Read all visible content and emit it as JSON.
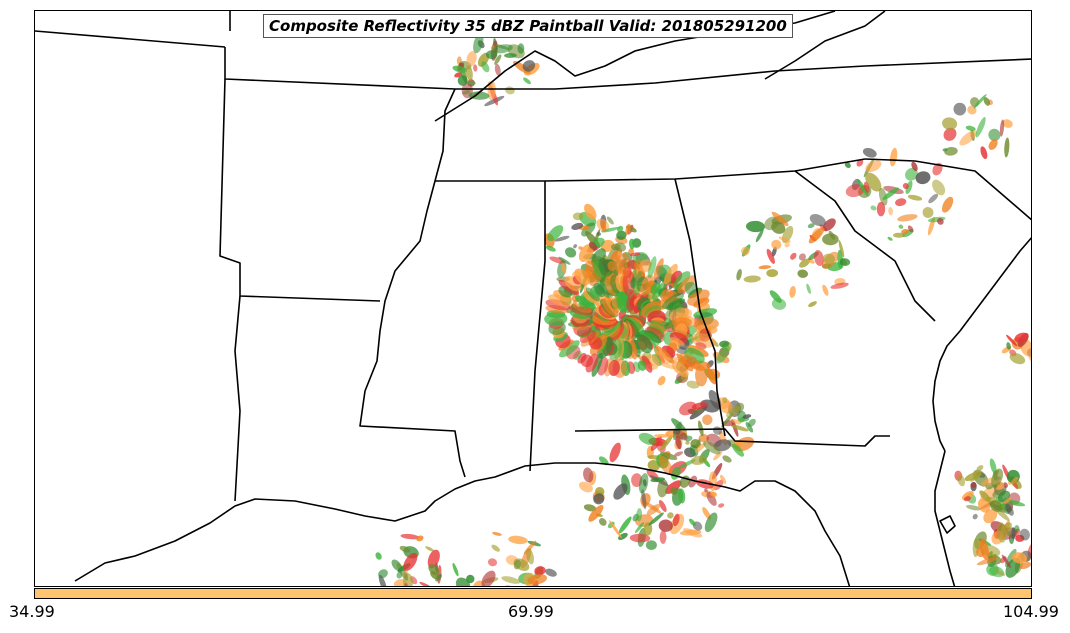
{
  "title": "Composite Reflectivity 35 dBZ Paintball Valid: 201805291200",
  "colorbar": {
    "color": "#ffc470",
    "tick_labels": [
      "34.99",
      "69.99",
      "104.99"
    ]
  },
  "paintball_colors": [
    "#e63333",
    "#f07f1f",
    "#ffa040",
    "#3bb33b",
    "#2e8b2e",
    "#b03a3a",
    "#a5a030",
    "#555555",
    "#6e8a2e"
  ],
  "map": {
    "region": "Southeastern United States",
    "boundary_color": "#000000",
    "background": "#ffffff"
  }
}
